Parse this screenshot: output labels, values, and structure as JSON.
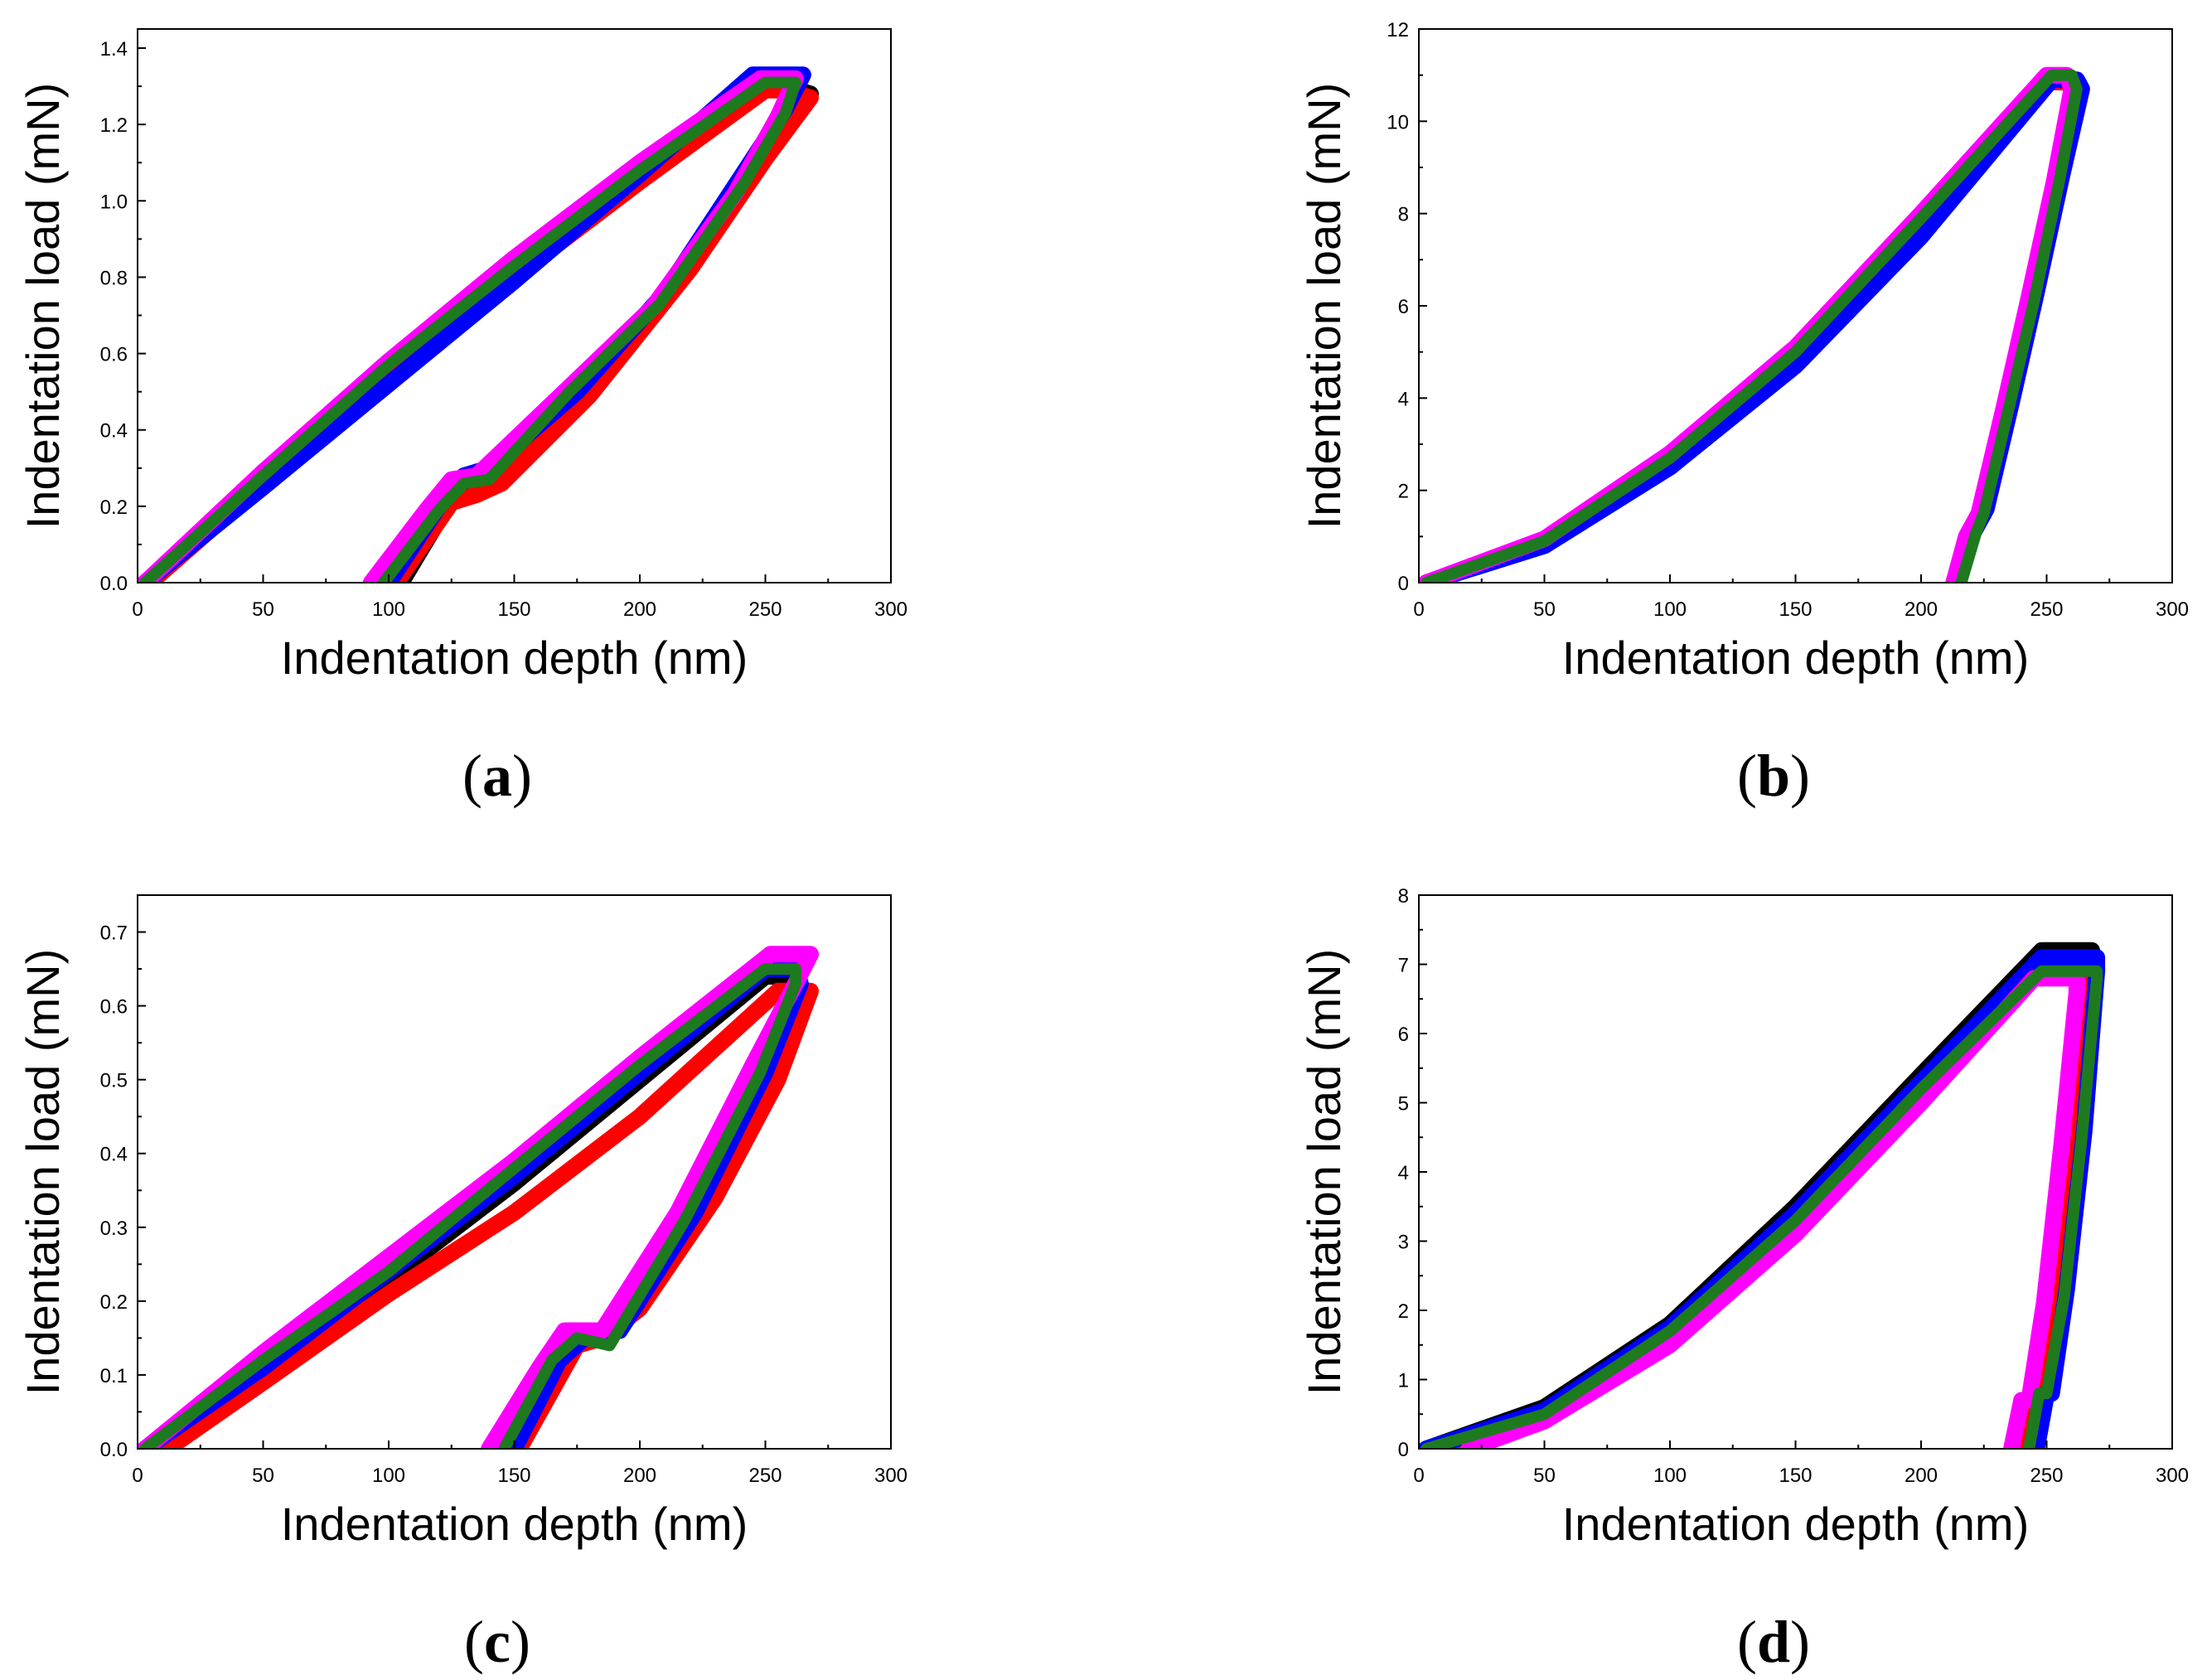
{
  "figure": {
    "panels": [
      {
        "id": "a",
        "caption_open": "(",
        "caption_letter": "a",
        "caption_close": ")"
      },
      {
        "id": "b",
        "caption_open": "(",
        "caption_letter": "b",
        "caption_close": ")"
      },
      {
        "id": "c",
        "caption_open": "(",
        "caption_letter": "c",
        "caption_close": ")"
      },
      {
        "id": "d",
        "caption_open": "(",
        "caption_letter": "d",
        "caption_close": ")"
      }
    ]
  },
  "series_colors": {
    "black": "#000000",
    "red": "#ff0000",
    "blue": "#0000ff",
    "magenta": "#ff00ff",
    "green": "#1e7a1e"
  },
  "chart_data": [
    {
      "panel": "a",
      "type": "line",
      "title": "",
      "xlabel": "Indentation depth (nm)",
      "ylabel": "Indentation load (mN)",
      "xlim": [
        0,
        300
      ],
      "ylim": [
        0,
        1.45
      ],
      "xticks": [
        0,
        50,
        100,
        150,
        200,
        250,
        300
      ],
      "yticks": [
        0.0,
        0.2,
        0.4,
        0.6,
        0.8,
        1.0,
        1.2,
        1.4
      ],
      "ytick_labels": [
        "0.0",
        "0.2",
        "0.4",
        "0.6",
        "0.8",
        "1.0",
        "1.2",
        "1.4"
      ],
      "series": [
        {
          "name": "black",
          "color": "#000000",
          "x": [
            3,
            50,
            100,
            150,
            200,
            250,
            258,
            268,
            250,
            220,
            180,
            145,
            135,
            125,
            105
          ],
          "y": [
            0,
            0.27,
            0.55,
            0.82,
            1.07,
            1.3,
            1.3,
            1.28,
            1.12,
            0.84,
            0.5,
            0.28,
            0.24,
            0.22,
            0
          ]
        },
        {
          "name": "red",
          "color": "#ff0000",
          "x": [
            5,
            50,
            100,
            150,
            200,
            250,
            258,
            268,
            250,
            220,
            180,
            145,
            135,
            125,
            103
          ],
          "y": [
            0,
            0.26,
            0.53,
            0.8,
            1.05,
            1.29,
            1.29,
            1.27,
            1.11,
            0.82,
            0.49,
            0.26,
            0.23,
            0.21,
            0
          ]
        },
        {
          "name": "blue",
          "color": "#0000ff",
          "x": [
            3,
            50,
            100,
            150,
            200,
            245,
            265,
            258,
            240,
            210,
            175,
            140,
            130,
            120,
            100
          ],
          "y": [
            0,
            0.25,
            0.52,
            0.79,
            1.07,
            1.33,
            1.33,
            1.24,
            1.06,
            0.76,
            0.5,
            0.3,
            0.28,
            0.2,
            0
          ]
        },
        {
          "name": "magenta",
          "color": "#ff00ff",
          "x": [
            3,
            50,
            100,
            150,
            200,
            248,
            262,
            255,
            238,
            205,
            170,
            135,
            125,
            115,
            93
          ],
          "y": [
            0,
            0.29,
            0.58,
            0.85,
            1.1,
            1.32,
            1.32,
            1.22,
            1.02,
            0.72,
            0.5,
            0.28,
            0.27,
            0.19,
            0
          ]
        },
        {
          "name": "green",
          "color": "#1e7a1e",
          "x": [
            3,
            50,
            100,
            150,
            200,
            250,
            262,
            258,
            242,
            208,
            172,
            140,
            130,
            120,
            98
          ],
          "y": [
            0,
            0.28,
            0.57,
            0.83,
            1.08,
            1.31,
            1.31,
            1.23,
            1.05,
            0.73,
            0.5,
            0.27,
            0.26,
            0.19,
            0
          ]
        }
      ]
    },
    {
      "panel": "b",
      "type": "line",
      "title": "",
      "xlabel": "Indentation depth (nm)",
      "ylabel": "Indentation load (mN)",
      "xlim": [
        0,
        300
      ],
      "ylim": [
        0,
        12
      ],
      "xticks": [
        0,
        50,
        100,
        150,
        200,
        250,
        300
      ],
      "yticks": [
        0,
        2,
        4,
        6,
        8,
        10,
        12
      ],
      "ytick_labels": [
        "0",
        "2",
        "4",
        "6",
        "8",
        "10",
        "12"
      ],
      "series": [
        {
          "name": "black",
          "color": "#000000",
          "x": [
            3,
            50,
            100,
            150,
            200,
            250,
            258,
            262,
            255,
            245,
            235,
            225,
            219,
            213
          ],
          "y": [
            0,
            0.9,
            2.7,
            5.0,
            7.8,
            10.9,
            10.9,
            10.6,
            8.7,
            6.2,
            3.8,
            1.5,
            1.0,
            0
          ]
        },
        {
          "name": "red",
          "color": "#ff0000",
          "x": [
            3,
            50,
            100,
            150,
            200,
            250,
            258,
            262,
            255,
            245,
            235,
            225,
            219,
            214
          ],
          "y": [
            0,
            0.85,
            2.6,
            4.9,
            7.7,
            10.85,
            10.85,
            10.55,
            8.6,
            6.1,
            3.7,
            1.5,
            1.0,
            0
          ]
        },
        {
          "name": "blue",
          "color": "#0000ff",
          "x": [
            3,
            50,
            100,
            150,
            200,
            252,
            262,
            264,
            256,
            246,
            236,
            226,
            220,
            215
          ],
          "y": [
            0,
            0.8,
            2.5,
            4.7,
            7.5,
            10.9,
            10.9,
            10.7,
            8.8,
            6.3,
            3.9,
            1.6,
            1.0,
            0
          ]
        },
        {
          "name": "magenta",
          "color": "#ff00ff",
          "x": [
            3,
            50,
            100,
            150,
            200,
            250,
            258,
            260,
            253,
            243,
            233,
            223,
            218,
            213
          ],
          "y": [
            0,
            0.95,
            2.8,
            5.1,
            8.0,
            11.0,
            11.0,
            10.7,
            8.7,
            6.2,
            3.8,
            1.5,
            1.0,
            0
          ]
        },
        {
          "name": "green",
          "color": "#1e7a1e",
          "x": [
            3,
            50,
            100,
            150,
            200,
            252,
            260,
            262,
            255,
            245,
            235,
            225,
            222,
            216
          ],
          "y": [
            0,
            0.9,
            2.7,
            5.0,
            7.9,
            11.0,
            11.0,
            10.7,
            8.7,
            6.1,
            3.8,
            1.5,
            1.1,
            0
          ]
        }
      ]
    },
    {
      "panel": "c",
      "type": "line",
      "title": "",
      "xlabel": "Indentation depth (nm)",
      "ylabel": "Indentation load (mN)",
      "xlim": [
        0,
        300
      ],
      "ylim": [
        0,
        0.75
      ],
      "xticks": [
        0,
        50,
        100,
        150,
        200,
        250,
        300
      ],
      "yticks": [
        0.0,
        0.1,
        0.2,
        0.3,
        0.4,
        0.5,
        0.6,
        0.7
      ],
      "ytick_labels": [
        "0.0",
        "0.1",
        "0.2",
        "0.3",
        "0.4",
        "0.5",
        "0.6",
        "0.7"
      ],
      "series": [
        {
          "name": "black",
          "color": "#000000",
          "x": [
            5,
            50,
            100,
            150,
            200,
            250,
            260,
            265,
            250,
            220,
            190,
            175,
            165,
            148
          ],
          "y": [
            0,
            0.11,
            0.23,
            0.36,
            0.5,
            0.64,
            0.64,
            0.62,
            0.5,
            0.32,
            0.17,
            0.14,
            0.13,
            0
          ]
        },
        {
          "name": "red",
          "color": "#ff0000",
          "x": [
            12,
            50,
            100,
            150,
            200,
            255,
            262,
            268,
            255,
            230,
            200,
            185,
            175,
            152
          ],
          "y": [
            0,
            0.09,
            0.21,
            0.32,
            0.45,
            0.62,
            0.62,
            0.62,
            0.5,
            0.34,
            0.19,
            0.15,
            0.14,
            0
          ]
        },
        {
          "name": "blue",
          "color": "#0000ff",
          "x": [
            3,
            50,
            100,
            150,
            200,
            250,
            262,
            264,
            250,
            222,
            192,
            178,
            168,
            150
          ],
          "y": [
            0,
            0.11,
            0.24,
            0.37,
            0.51,
            0.65,
            0.65,
            0.63,
            0.51,
            0.32,
            0.16,
            0.15,
            0.12,
            0
          ]
        },
        {
          "name": "magenta",
          "color": "#ff00ff",
          "x": [
            3,
            50,
            100,
            150,
            200,
            252,
            268,
            262,
            245,
            215,
            185,
            170,
            160,
            140
          ],
          "y": [
            0,
            0.13,
            0.26,
            0.39,
            0.53,
            0.67,
            0.67,
            0.63,
            0.52,
            0.32,
            0.16,
            0.16,
            0.11,
            0
          ]
        },
        {
          "name": "green",
          "color": "#1e7a1e",
          "x": [
            3,
            50,
            100,
            150,
            200,
            250,
            262,
            262,
            248,
            218,
            188,
            175,
            165,
            146
          ],
          "y": [
            0,
            0.12,
            0.24,
            0.38,
            0.52,
            0.65,
            0.65,
            0.63,
            0.51,
            0.31,
            0.14,
            0.15,
            0.12,
            0
          ]
        }
      ]
    },
    {
      "panel": "d",
      "type": "line",
      "title": "",
      "xlabel": "Indentation depth (nm)",
      "ylabel": "Indentation load (mN)",
      "xlim": [
        0,
        300
      ],
      "ylim": [
        0,
        8
      ],
      "xticks": [
        0,
        50,
        100,
        150,
        200,
        250,
        300
      ],
      "yticks": [
        0,
        1,
        2,
        3,
        4,
        5,
        6,
        7,
        8
      ],
      "ytick_labels": [
        "0",
        "1",
        "2",
        "3",
        "4",
        "5",
        "6",
        "7",
        "8"
      ],
      "series": [
        {
          "name": "black",
          "color": "#000000",
          "x": [
            3,
            50,
            100,
            150,
            200,
            248,
            268,
            268,
            262,
            255,
            248,
            245,
            240
          ],
          "y": [
            0,
            0.6,
            1.8,
            3.5,
            5.4,
            7.2,
            7.2,
            6.9,
            4.6,
            2.3,
            0.8,
            0.5,
            0
          ]
        },
        {
          "name": "red",
          "color": "#ff0000",
          "x": [
            5,
            50,
            100,
            150,
            200,
            248,
            266,
            267,
            261,
            254,
            247,
            244,
            240
          ],
          "y": [
            0,
            0.55,
            1.7,
            3.4,
            5.3,
            7.0,
            7.0,
            6.8,
            4.5,
            2.2,
            0.8,
            0.5,
            0
          ]
        },
        {
          "name": "blue",
          "color": "#0000ff",
          "x": [
            3,
            50,
            100,
            150,
            200,
            248,
            270,
            270,
            265,
            258,
            252,
            250,
            246
          ],
          "y": [
            0,
            0.55,
            1.75,
            3.4,
            5.3,
            7.1,
            7.1,
            6.9,
            4.6,
            2.3,
            0.8,
            0.8,
            0
          ]
        },
        {
          "name": "magenta",
          "color": "#ff00ff",
          "x": [
            20,
            50,
            100,
            150,
            200,
            245,
            262,
            262,
            256,
            249,
            243,
            240,
            236
          ],
          "y": [
            0,
            0.4,
            1.5,
            3.1,
            5.0,
            6.8,
            6.8,
            6.6,
            4.4,
            2.1,
            0.7,
            0.7,
            0
          ]
        },
        {
          "name": "green",
          "color": "#1e7a1e",
          "x": [
            3,
            50,
            100,
            150,
            200,
            248,
            270,
            270,
            264,
            257,
            250,
            247,
            243
          ],
          "y": [
            0,
            0.5,
            1.7,
            3.3,
            5.2,
            6.9,
            6.9,
            6.8,
            4.5,
            2.2,
            0.8,
            0.8,
            0
          ]
        }
      ]
    }
  ]
}
